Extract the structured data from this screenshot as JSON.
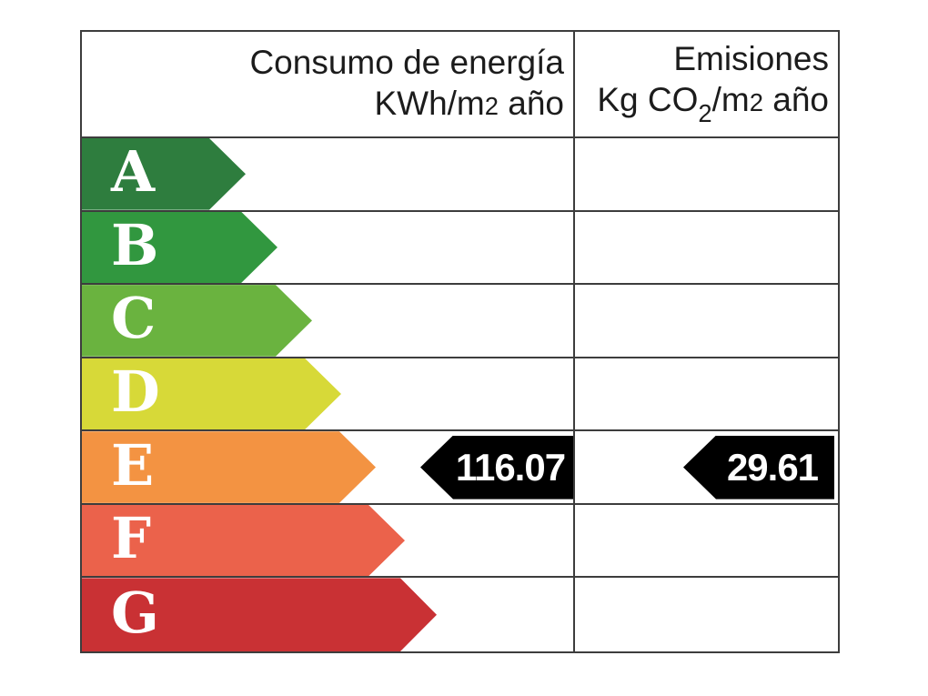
{
  "header": {
    "consumption_title": "Consumo de energía",
    "consumption_unit": {
      "prefix": "KWh/m",
      "exp": "2",
      "suffix": " año"
    },
    "emissions_title": "Emisiones",
    "emissions_unit": {
      "prefix": "Kg CO",
      "sub": "2",
      "mid": "/m",
      "exp": "2",
      "suffix": " año"
    }
  },
  "ratings": [
    {
      "letter": "A",
      "color": "#2e7d3e"
    },
    {
      "letter": "B",
      "color": "#31973f"
    },
    {
      "letter": "C",
      "color": "#6ab33f"
    },
    {
      "letter": "D",
      "color": "#d7d938"
    },
    {
      "letter": "E",
      "color": "#f39342"
    },
    {
      "letter": "F",
      "color": "#eb624b"
    },
    {
      "letter": "G",
      "color": "#c93134"
    }
  ],
  "values": {
    "consumption": "116.07",
    "emissions": "29.61",
    "marker_color": "#000000",
    "rated_class": "E"
  },
  "chart_data": {
    "type": "table",
    "columns": [
      "Consumo de energía KWh/m2 año",
      "Emisiones Kg CO2/m2 año"
    ],
    "rating_scale": [
      "A",
      "B",
      "C",
      "D",
      "E",
      "F",
      "G"
    ],
    "rating_colors": [
      "#2e7d3e",
      "#31973f",
      "#6ab33f",
      "#d7d938",
      "#f39342",
      "#eb624b",
      "#c93134"
    ],
    "consumption_kwh_m2_year": 116.07,
    "emissions_kgco2_m2_year": 29.61,
    "assigned_rating": "E"
  }
}
